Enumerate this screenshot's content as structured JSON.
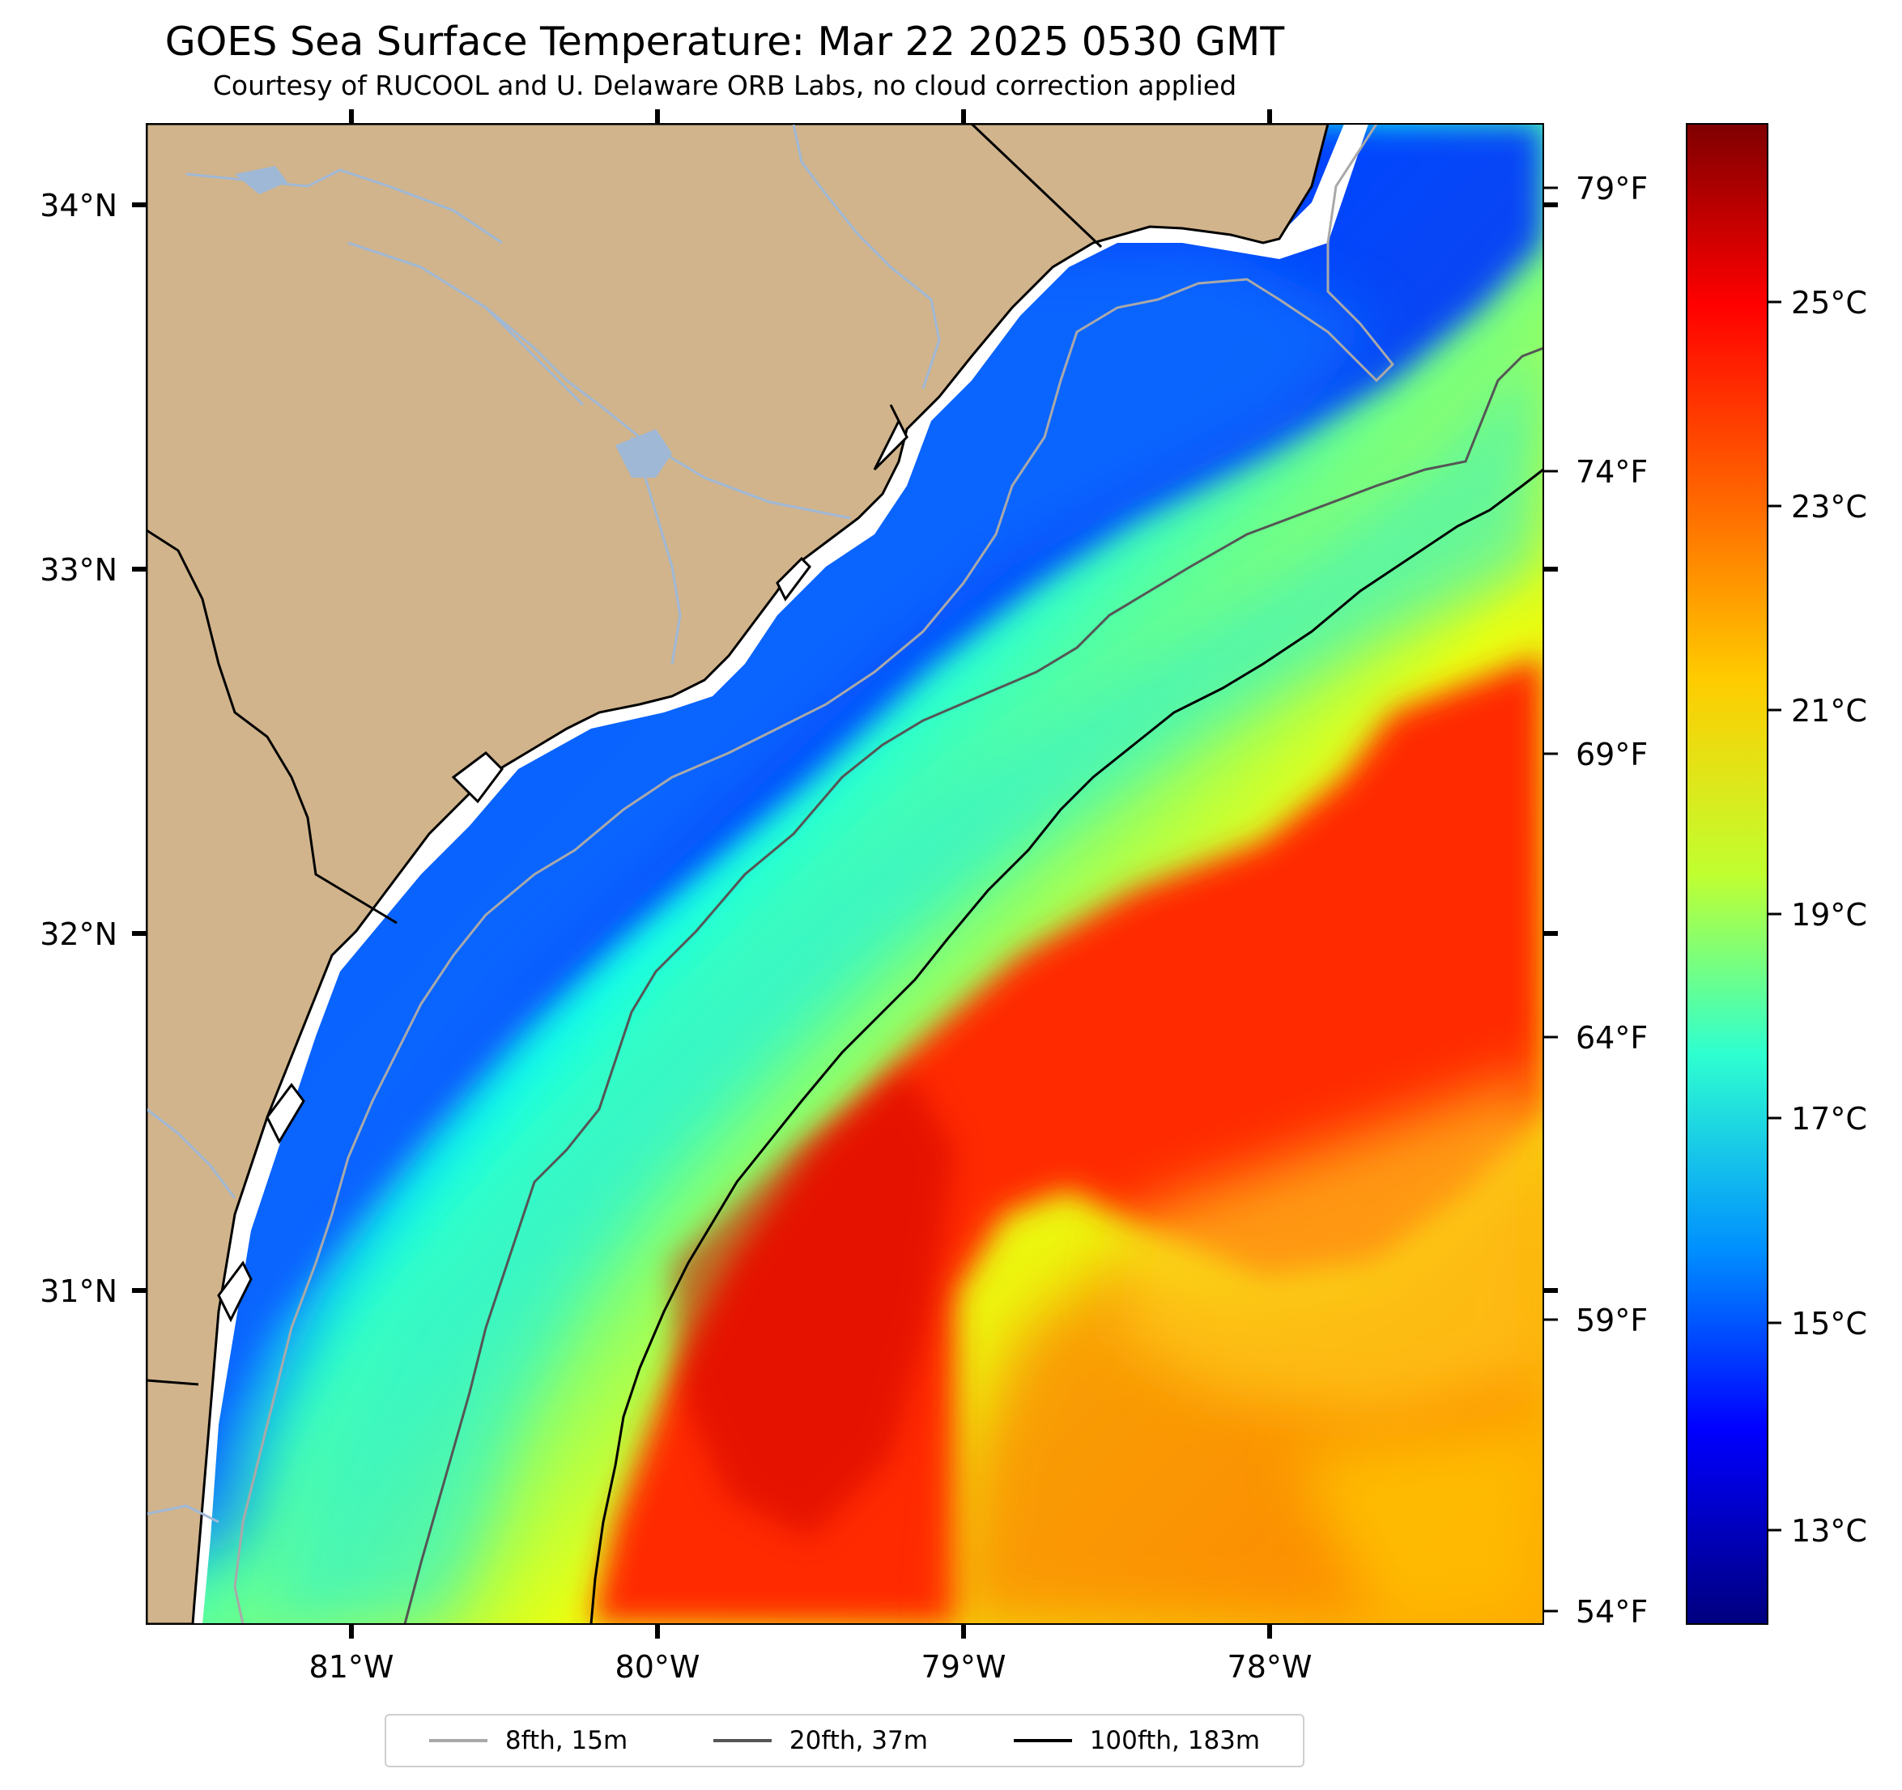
{
  "header": {
    "title": "GOES Sea Surface Temperature: Mar 22 2025 0530 GMT",
    "subtitle": "Courtesy of RUCOOL and U. Delaware ORB Labs, no cloud correction applied"
  },
  "map": {
    "lat_labels": [
      "34°N",
      "33°N",
      "32°N",
      "31°N"
    ],
    "lon_labels": [
      "81°W",
      "80°W",
      "79°W",
      "78°W"
    ],
    "fahrenheit_labels": [
      "79°F",
      "74°F",
      "69°F",
      "64°F",
      "59°F",
      "54°F"
    ],
    "colors": {
      "land": "#d1b48c",
      "nearshore_gap": "#ffffff",
      "rivers": "#9fb8d6"
    }
  },
  "colorbar": {
    "labels": [
      "25°C",
      "23°C",
      "21°C",
      "19°C",
      "17°C",
      "15°C",
      "13°C"
    ],
    "colormap": [
      "#7f0000",
      "#ff2a00",
      "#ffa500",
      "#eaff10",
      "#7dff7a",
      "#14ffe6",
      "#0082ff",
      "#0000ff",
      "#00007f"
    ]
  },
  "legend": {
    "items": [
      {
        "label": "8fth, 15m",
        "color": "#a9a9a9"
      },
      {
        "label": "20fth, 37m",
        "color": "#555555"
      },
      {
        "label": "100fth, 183m",
        "color": "#000000"
      }
    ]
  }
}
